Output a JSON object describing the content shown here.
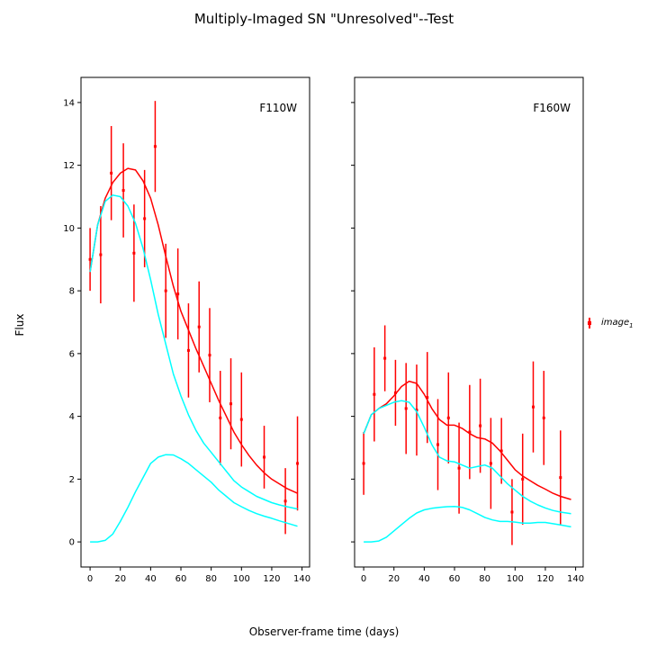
{
  "chart_data": {
    "type": "line",
    "title": "Multiply-Imaged SN \"Unresolved\"--Test",
    "xlabel": "Observer-frame time (days)",
    "ylabel": "Flux",
    "sharey": true,
    "ylim": [
      -0.8,
      14.8
    ],
    "xlim": [
      -6,
      145
    ],
    "legend": {
      "position": "right",
      "entries": [
        {
          "name": "$image_1$",
          "label_main": "image",
          "label_sub": "1",
          "color": "#ff0000"
        }
      ]
    },
    "panels": [
      {
        "name": "F110W",
        "label": "F110W",
        "xticks": [
          0,
          20,
          40,
          60,
          80,
          100,
          120,
          140
        ],
        "yticks": [
          0,
          2,
          4,
          6,
          8,
          10,
          12,
          14
        ],
        "series": [
          {
            "name": "image_1",
            "kind": "errorbar",
            "color": "#ff0000",
            "x": [
              0,
              7,
              14,
              22,
              29,
              36,
              43,
              50,
              58,
              65,
              72,
              79,
              86,
              93,
              100,
              115,
              129,
              137
            ],
            "y": [
              9.0,
              9.15,
              11.75,
              11.2,
              9.2,
              10.3,
              12.6,
              8.0,
              7.9,
              6.1,
              6.85,
              5.95,
              3.95,
              4.4,
              3.9,
              2.7,
              1.3,
              2.5
            ],
            "yerr": [
              1.0,
              1.55,
              1.5,
              1.5,
              1.55,
              1.55,
              1.45,
              1.5,
              1.45,
              1.5,
              1.45,
              1.5,
              1.5,
              1.45,
              1.5,
              1.0,
              1.05,
              1.5
            ]
          },
          {
            "name": "model total",
            "kind": "line",
            "color": "#ff0000",
            "x": [
              0,
              5,
              10,
              15,
              20,
              25,
              30,
              35,
              40,
              45,
              50,
              55,
              60,
              65,
              70,
              75,
              80,
              85,
              90,
              95,
              100,
              105,
              110,
              115,
              120,
              125,
              130,
              137
            ],
            "y": [
              8.6,
              10.1,
              10.95,
              11.45,
              11.75,
              11.9,
              11.85,
              11.5,
              10.95,
              10.1,
              9.1,
              8.15,
              7.35,
              6.75,
              6.15,
              5.6,
              5.05,
              4.5,
              4.0,
              3.5,
              3.1,
              2.75,
              2.45,
              2.2,
              2.0,
              1.85,
              1.7,
              1.55
            ]
          },
          {
            "name": "model component 1",
            "kind": "line",
            "color": "#00ffff",
            "x": [
              0,
              5,
              10,
              15,
              20,
              25,
              30,
              35,
              40,
              45,
              50,
              55,
              60,
              65,
              70,
              75,
              80,
              85,
              90,
              95,
              100,
              105,
              110,
              115,
              120,
              125,
              130,
              137
            ],
            "y": [
              8.6,
              10.1,
              10.85,
              11.05,
              11.0,
              10.7,
              10.15,
              9.35,
              8.35,
              7.25,
              6.3,
              5.35,
              4.65,
              4.05,
              3.55,
              3.15,
              2.85,
              2.55,
              2.25,
              1.95,
              1.75,
              1.6,
              1.45,
              1.35,
              1.25,
              1.18,
              1.12,
              1.05
            ]
          },
          {
            "name": "model component 2",
            "kind": "line",
            "color": "#00ffff",
            "x": [
              0,
              5,
              10,
              15,
              20,
              25,
              30,
              35,
              40,
              45,
              50,
              55,
              60,
              65,
              70,
              75,
              80,
              85,
              90,
              95,
              100,
              105,
              110,
              115,
              120,
              125,
              130,
              137
            ],
            "y": [
              0.0,
              0.0,
              0.05,
              0.25,
              0.65,
              1.1,
              1.6,
              2.05,
              2.5,
              2.7,
              2.78,
              2.77,
              2.65,
              2.5,
              2.3,
              2.1,
              1.9,
              1.65,
              1.45,
              1.25,
              1.12,
              1.0,
              0.9,
              0.82,
              0.75,
              0.67,
              0.6,
              0.5
            ]
          }
        ]
      },
      {
        "name": "F160W",
        "label": "F160W",
        "xticks": [
          0,
          20,
          40,
          60,
          80,
          100,
          120,
          140
        ],
        "yticks": [],
        "series": [
          {
            "name": "image_1",
            "kind": "errorbar",
            "color": "#ff0000",
            "x": [
              0,
              7,
              14,
              21,
              28,
              35,
              42,
              49,
              56,
              63,
              70,
              77,
              84,
              91,
              98,
              105,
              112,
              119,
              130
            ],
            "y": [
              2.5,
              4.7,
              5.85,
              4.75,
              4.25,
              4.2,
              4.6,
              3.1,
              3.95,
              2.35,
              3.5,
              3.7,
              2.5,
              2.9,
              0.95,
              2.0,
              4.3,
              3.95,
              2.05
            ],
            "yerr": [
              1.0,
              1.5,
              1.05,
              1.05,
              1.45,
              1.45,
              1.45,
              1.45,
              1.45,
              1.45,
              1.5,
              1.5,
              1.45,
              1.05,
              1.05,
              1.45,
              1.45,
              1.5,
              1.5
            ]
          },
          {
            "name": "model total",
            "kind": "line",
            "color": "#ff0000",
            "x": [
              0,
              5,
              10,
              15,
              20,
              25,
              30,
              35,
              40,
              45,
              50,
              55,
              60,
              65,
              70,
              75,
              80,
              85,
              90,
              95,
              100,
              105,
              110,
              115,
              120,
              125,
              130,
              137
            ],
            "y": [
              3.45,
              4.05,
              4.25,
              4.4,
              4.65,
              4.95,
              5.12,
              5.05,
              4.7,
              4.25,
              3.9,
              3.72,
              3.72,
              3.62,
              3.45,
              3.32,
              3.28,
              3.15,
              2.9,
              2.6,
              2.3,
              2.1,
              1.95,
              1.8,
              1.68,
              1.55,
              1.45,
              1.35
            ]
          },
          {
            "name": "model component 1",
            "kind": "line",
            "color": "#00ffff",
            "x": [
              0,
              5,
              10,
              15,
              20,
              25,
              30,
              35,
              40,
              45,
              50,
              55,
              60,
              65,
              70,
              75,
              80,
              85,
              90,
              95,
              100,
              105,
              110,
              115,
              120,
              125,
              130,
              137
            ],
            "y": [
              3.45,
              4.05,
              4.25,
              4.35,
              4.45,
              4.5,
              4.45,
              4.15,
              3.65,
              3.1,
              2.7,
              2.58,
              2.55,
              2.45,
              2.35,
              2.4,
              2.45,
              2.35,
              2.1,
              1.85,
              1.65,
              1.45,
              1.3,
              1.18,
              1.08,
              1.0,
              0.95,
              0.9
            ]
          },
          {
            "name": "model component 2",
            "kind": "line",
            "color": "#00ffff",
            "x": [
              0,
              5,
              10,
              15,
              20,
              25,
              30,
              35,
              40,
              45,
              50,
              55,
              60,
              65,
              70,
              75,
              80,
              85,
              90,
              95,
              100,
              105,
              110,
              115,
              120,
              125,
              130,
              137
            ],
            "y": [
              0.0,
              0.0,
              0.03,
              0.15,
              0.35,
              0.55,
              0.75,
              0.92,
              1.02,
              1.07,
              1.1,
              1.12,
              1.13,
              1.1,
              1.02,
              0.9,
              0.78,
              0.7,
              0.65,
              0.65,
              0.63,
              0.6,
              0.6,
              0.62,
              0.62,
              0.58,
              0.54,
              0.48
            ]
          }
        ]
      }
    ]
  }
}
